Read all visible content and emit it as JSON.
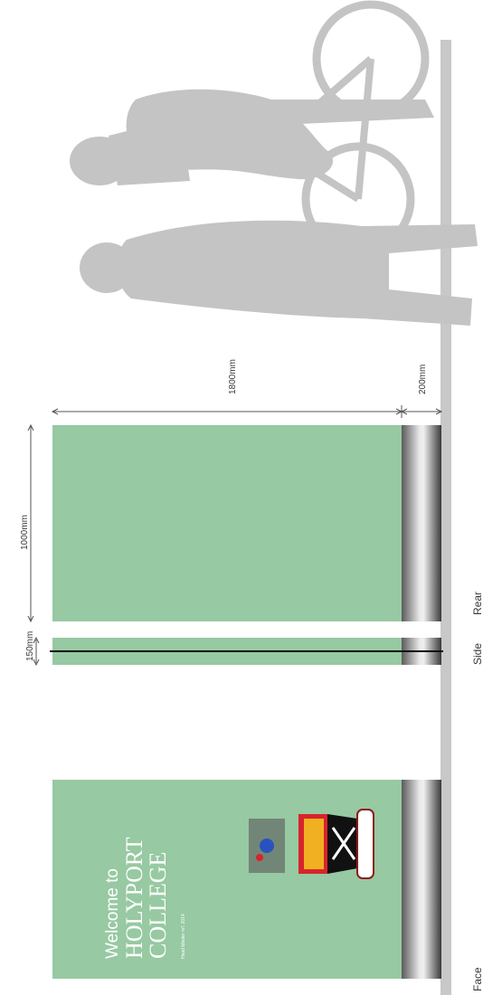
{
  "dimensions": {
    "sign_width": "1000mm",
    "sign_depth": "150mm",
    "panel_height": "1800mm",
    "base_height": "200mm"
  },
  "views": {
    "face": "Face",
    "side": "Side",
    "rear": "Rear"
  },
  "sign": {
    "welcome": "Welcome to",
    "line1": "HOLYPORT",
    "line2": "COLLEGE",
    "small": "Head Master ref. 2014"
  },
  "colors": {
    "panel": "#97c9a2",
    "ground": "#c8c8c8",
    "silhouette": "#c4c4c4",
    "dimension_line": "#555555"
  }
}
